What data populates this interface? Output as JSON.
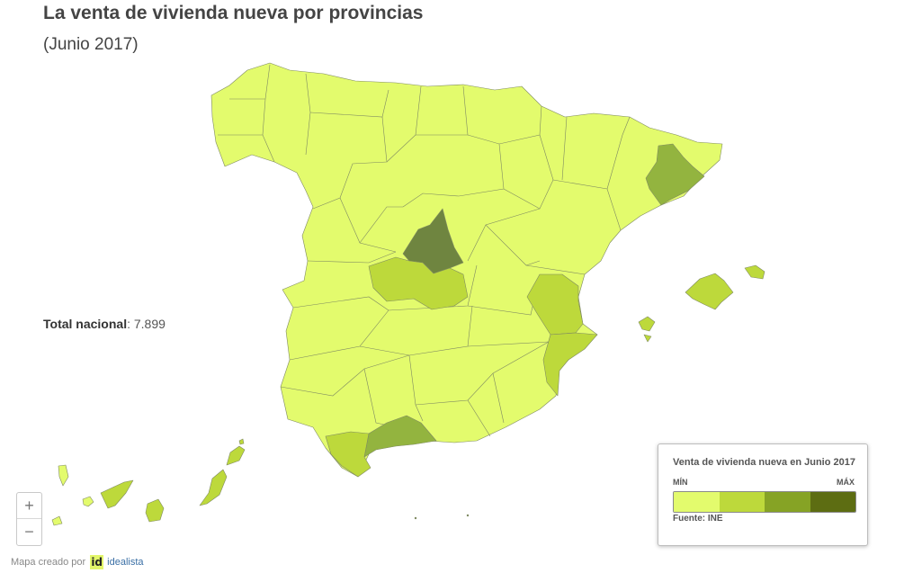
{
  "header": {
    "title": "La venta de vivienda nueva por provincias",
    "subtitle": "(Junio 2017)"
  },
  "total": {
    "label": "Total nacional",
    "value": ": 7.899"
  },
  "colors": {
    "min": "#e3fb6d",
    "c2": "#bdd93b",
    "c3": "#93b43f",
    "max": "#6f8540",
    "stroke": "#7f8a62"
  },
  "map": {
    "regions": [
      {
        "id": "madrid",
        "class": "max"
      },
      {
        "id": "barcelona",
        "class": "c3"
      },
      {
        "id": "malaga",
        "class": "c3"
      },
      {
        "id": "toledo",
        "class": "c2"
      },
      {
        "id": "valencia",
        "class": "c2"
      },
      {
        "id": "alicante",
        "class": "c2"
      },
      {
        "id": "cadiz",
        "class": "c2"
      },
      {
        "id": "baleares",
        "class": "c2"
      },
      {
        "id": "tenerife",
        "class": "c2"
      },
      {
        "id": "las-palmas",
        "class": "c2"
      }
    ]
  },
  "zoom": {
    "in_label": "+",
    "out_label": "−"
  },
  "credit": {
    "text": "Mapa creado por",
    "logo": "id",
    "brand": "idealista"
  },
  "legend": {
    "title": "Venta de vivienda nueva en Junio 2017",
    "min_label": "MÍN",
    "max_label": "MÁX",
    "source": "Fuente: INE",
    "scale_colors": [
      "#e3fb6d",
      "#bdd93b",
      "#86a325",
      "#5d6d12"
    ]
  }
}
